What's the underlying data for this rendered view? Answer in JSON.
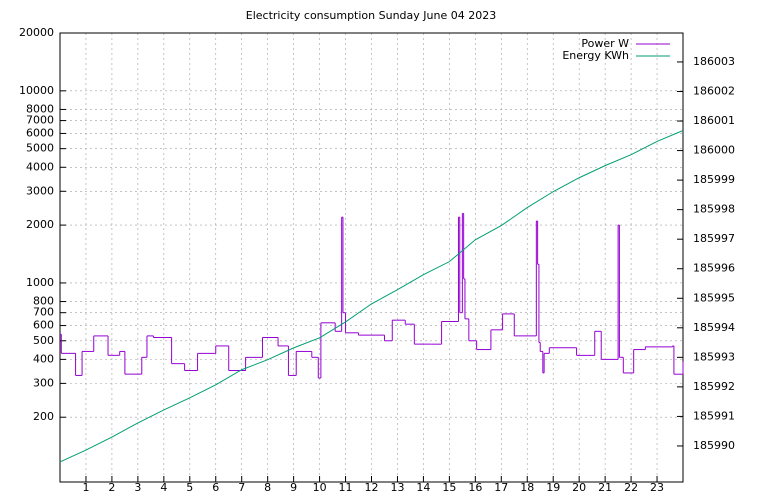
{
  "chart_data": {
    "type": "line",
    "title": "Electricity consumption Sunday June 04 2023",
    "xlim": [
      0,
      24
    ],
    "xticks": [
      1,
      2,
      3,
      4,
      5,
      6,
      7,
      8,
      9,
      10,
      11,
      12,
      13,
      14,
      15,
      16,
      17,
      18,
      19,
      20,
      21,
      22,
      23
    ],
    "ylim": [
      92,
      20000
    ],
    "y_scale": "log",
    "yticks": [
      200,
      300,
      400,
      500,
      600,
      700,
      800,
      1000,
      2000,
      3000,
      4000,
      5000,
      6000,
      7000,
      8000,
      10000,
      20000
    ],
    "y2lim": [
      185988.78,
      186003.98
    ],
    "y2ticks": [
      185990,
      185991,
      185992,
      185993,
      185994,
      185995,
      185996,
      185997,
      185998,
      185999,
      186000,
      186001,
      186002,
      186003
    ],
    "grid": true,
    "legend": "top-right",
    "series": [
      {
        "name": "Power W",
        "color": "#9400d3",
        "style": "steps",
        "x": [
          0,
          0.05,
          0.6,
          0.85,
          1.3,
          1.85,
          2.3,
          2.5,
          3.15,
          3.35,
          3.6,
          4.3,
          4.8,
          5.3,
          6.0,
          6.5,
          7.15,
          7.8,
          8.4,
          8.8,
          9.1,
          9.7,
          9.95,
          10.05,
          10.6,
          10.85,
          10.9,
          11.0,
          11.5,
          12.5,
          12.8,
          13.3,
          13.65,
          14.3,
          14.7,
          15.35,
          15.4,
          15.5,
          15.55,
          15.6,
          15.75,
          16.05,
          16.6,
          17.05,
          17.5,
          18.35,
          18.4,
          18.45,
          18.5,
          18.6,
          18.65,
          18.85,
          19.9,
          20.6,
          20.85,
          21.5,
          21.55,
          21.7,
          22.1,
          22.55,
          23.6,
          23.65,
          24
        ],
        "values": [
          540,
          430,
          330,
          440,
          530,
          420,
          440,
          335,
          410,
          530,
          520,
          380,
          350,
          430,
          470,
          350,
          410,
          520,
          470,
          330,
          440,
          410,
          320,
          620,
          560,
          2200,
          700,
          550,
          535,
          500,
          640,
          610,
          480,
          480,
          630,
          2200,
          700,
          2300,
          1050,
          650,
          500,
          450,
          570,
          690,
          530,
          2100,
          1250,
          490,
          440,
          340,
          430,
          460,
          420,
          560,
          400,
          2000,
          410,
          340,
          450,
          465,
          470,
          335,
          390
        ]
      },
      {
        "name": "Energy KWh",
        "color": "#009e73",
        "axis": "y2",
        "style": "line",
        "x": [
          0,
          1,
          2,
          3,
          4,
          5,
          6,
          7,
          8,
          9,
          10,
          11,
          12,
          13,
          14,
          15,
          16,
          17,
          18,
          19,
          20,
          21,
          22,
          23,
          24
        ],
        "values": [
          185989.46,
          185989.86,
          185990.3,
          185990.78,
          185991.22,
          185991.63,
          185992.07,
          185992.58,
          185992.92,
          185993.32,
          185993.66,
          185994.2,
          185994.81,
          185995.29,
          185995.8,
          185996.24,
          185996.98,
          185997.46,
          185998.07,
          185998.61,
          185999.08,
          185999.49,
          185999.86,
          186000.31,
          186000.68
        ]
      }
    ]
  }
}
